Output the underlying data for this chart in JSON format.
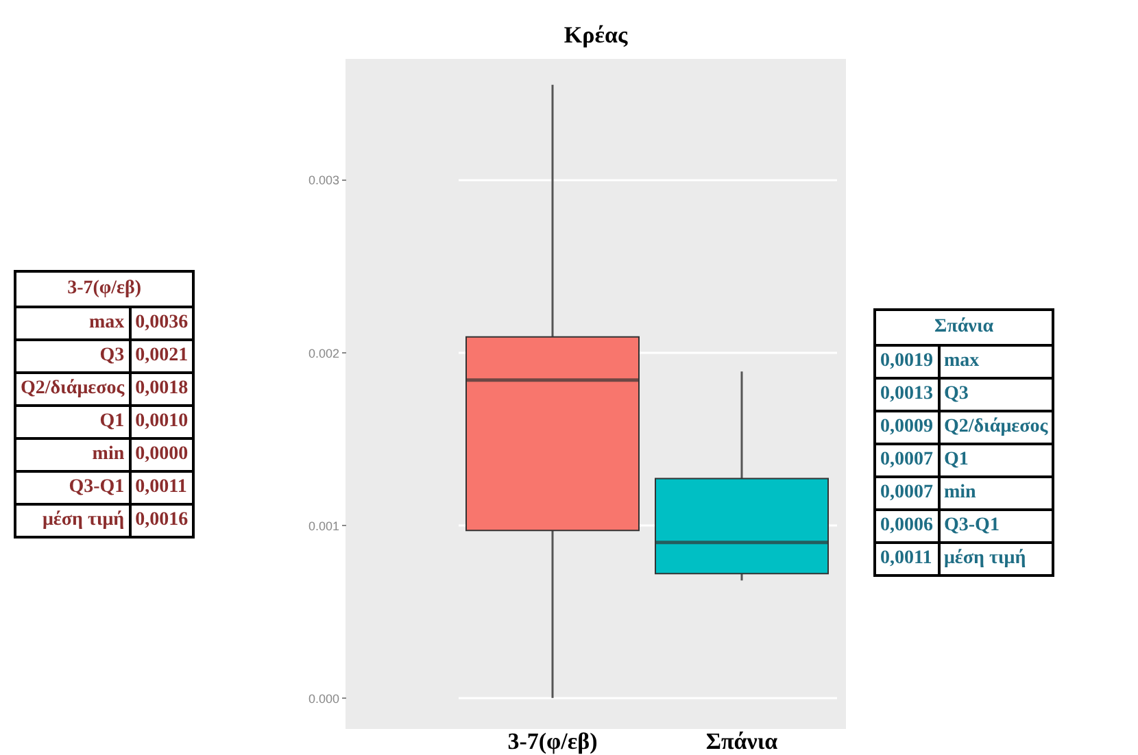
{
  "chart_data": [
    {
      "type": "other",
      "title": "3-7(φ/εβ)",
      "annotations": [
        "max",
        "0,0036",
        "Q3",
        "0,0021",
        "Q2/διάμεσος",
        "0,0018",
        "Q1",
        "0,0010",
        "min",
        "0,0000",
        "Q3-Q1",
        "0,0011",
        "μέση τιμή",
        "0,0016"
      ]
    },
    {
      "type": "box",
      "title": "Κρέας",
      "categories": [
        "3-7(φ/εβ)",
        "Σπάνια"
      ],
      "colors": [
        "#f8766d",
        "#00bfc4"
      ],
      "boxes": [
        {
          "low": 0,
          "q1": 0.00097,
          "median": 0.00184,
          "q3": 0.00209,
          "high": 0.00355
        },
        {
          "low": 0.00068,
          "q1": 0.00072,
          "median": 0.0009,
          "q3": 0.00127,
          "high": 0.00189
        }
      ],
      "ylim": [
        -0.00018,
        0.0037
      ],
      "yticks": [
        {
          "value": 0,
          "label": "0.000"
        },
        {
          "value": 0.001,
          "label": "0.001"
        },
        {
          "value": 0.002,
          "label": "0.002"
        },
        {
          "value": 0.003,
          "label": "0.003"
        }
      ],
      "grid": "y"
    },
    {
      "type": "other",
      "title": "Σπάνια",
      "annotations": [
        "0,0019",
        "max",
        "0,0013",
        "Q3",
        "0,0009",
        "Q2/διάμεσος",
        "0,0007",
        "Q1",
        "0,0007",
        "min",
        "0,0006",
        "Q3-Q1",
        "0,0011",
        "μέση τιμή"
      ]
    }
  ]
}
